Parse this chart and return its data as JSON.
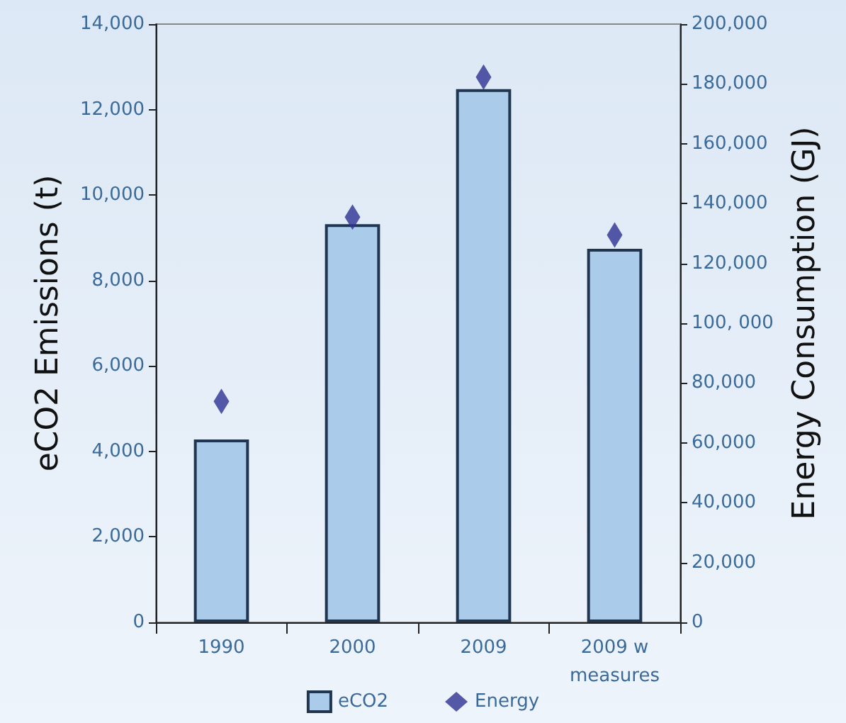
{
  "chart_data": {
    "type": "bar",
    "categories": [
      "1990",
      "2000",
      "2009",
      "2009 w\nmeasures"
    ],
    "ylabel": "eCO2 Emissions (t)",
    "y2label": "Energy Consumption (GJ)",
    "series": [
      {
        "name": "eCO2",
        "color": "#aacbea",
        "values": [
          4280,
          9320,
          12480,
          8740
        ]
      },
      {
        "name": "Energy",
        "type": "scatter",
        "axis": "y2",
        "color": "#2e3192",
        "marker": "diamond",
        "values": [
          73900,
          135500,
          182300,
          129500
        ]
      }
    ],
    "ylim": [
      0,
      14000
    ],
    "yticks": [
      {
        "value": 0,
        "label": "0"
      },
      {
        "value": 2000,
        "label": "2,000"
      },
      {
        "value": 4000,
        "label": "4,000"
      },
      {
        "value": 6000,
        "label": "6,000"
      },
      {
        "value": 8000,
        "label": "8,000"
      },
      {
        "value": 10000,
        "label": "10,000"
      },
      {
        "value": 12000,
        "label": "12,000"
      },
      {
        "value": 14000,
        "label": "14,000"
      }
    ],
    "y2lim": [
      0,
      200000
    ],
    "y2ticks": [
      {
        "value": 0,
        "label": "0"
      },
      {
        "value": 20000,
        "label": "20,000"
      },
      {
        "value": 40000,
        "label": "40,000"
      },
      {
        "value": 60000,
        "label": "60,000"
      },
      {
        "value": 80000,
        "label": "80,000"
      },
      {
        "value": 100000,
        "label": "100, 000"
      },
      {
        "value": 120000,
        "label": "120,000"
      },
      {
        "value": 140000,
        "label": "140,000"
      },
      {
        "value": 160000,
        "label": "160,000"
      },
      {
        "value": 180000,
        "label": "180,000"
      },
      {
        "value": 200000,
        "label": "200,000"
      }
    ],
    "grid": false,
    "legend": "bottom"
  }
}
